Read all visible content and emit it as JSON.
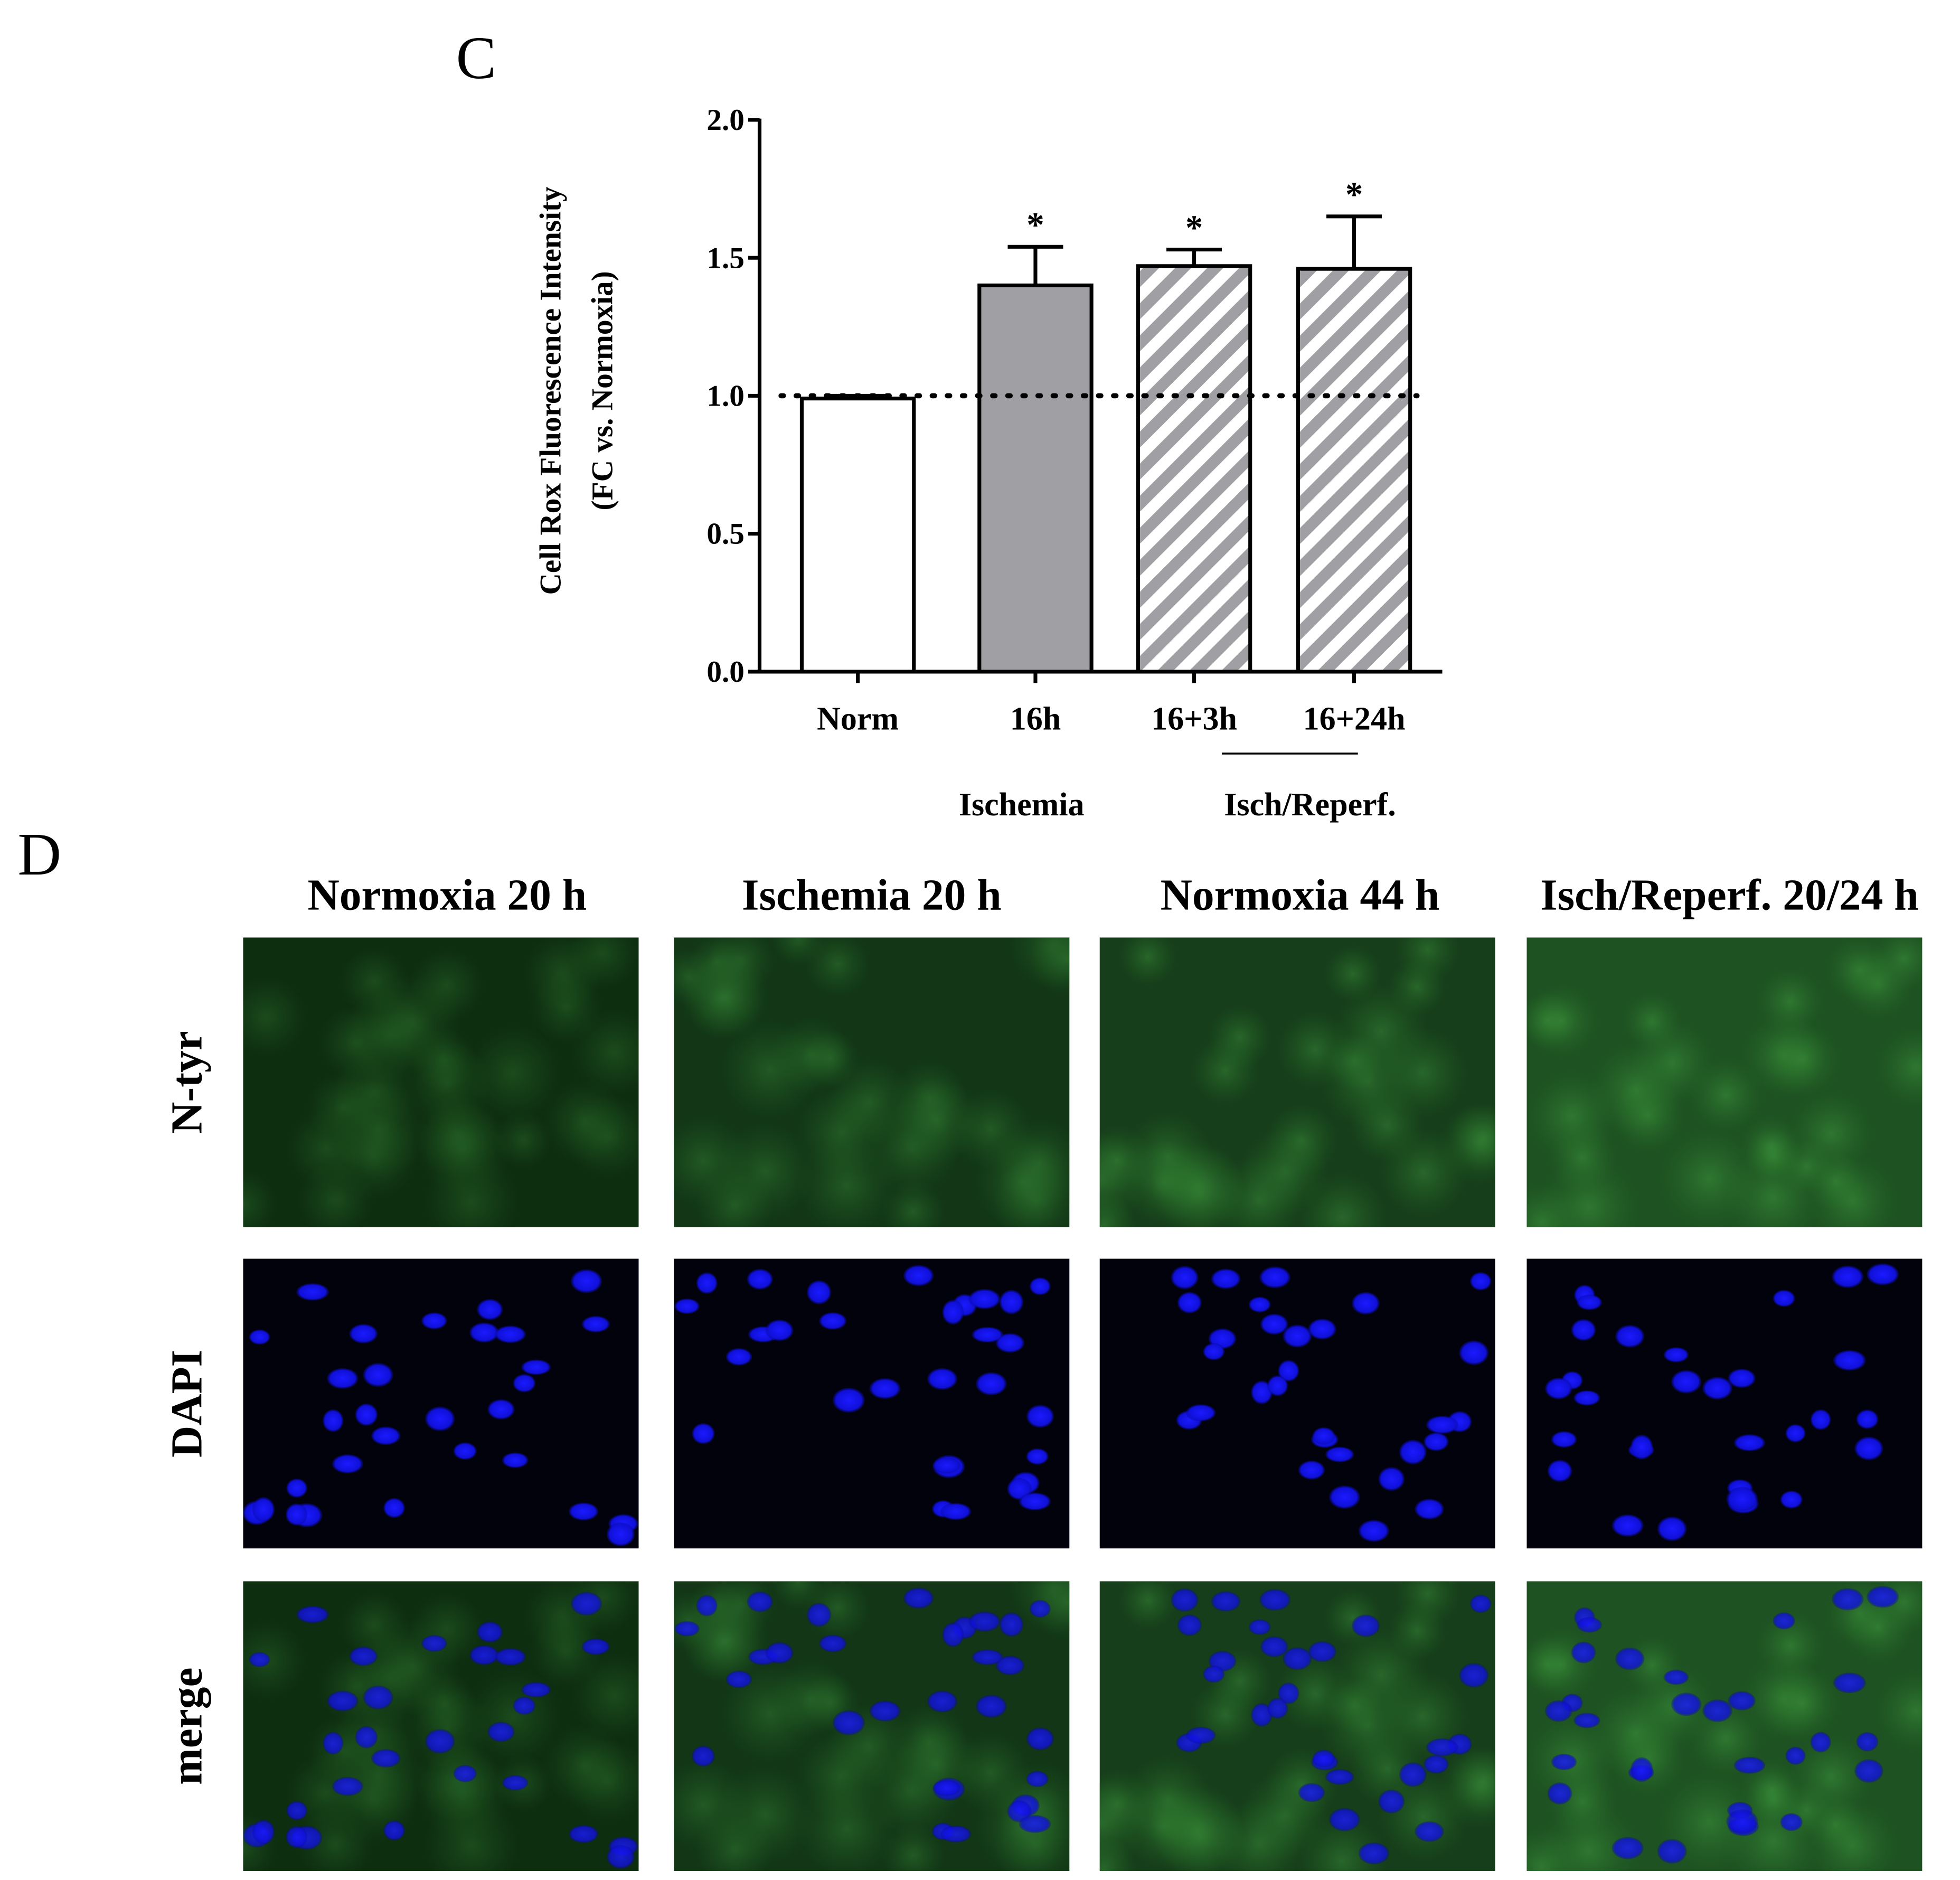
{
  "panel_c": {
    "label": "C"
  },
  "chart_data": {
    "type": "bar",
    "y_label_lines": [
      "Cell Rox Fluorescence Intensity",
      "(FC vs. Normoxia)"
    ],
    "categories": [
      "Norm",
      "16h",
      "16+3h",
      "16+24h"
    ],
    "values": [
      0.99,
      1.4,
      1.47,
      1.46
    ],
    "errors": [
      0.01,
      0.14,
      0.06,
      0.19
    ],
    "significance": [
      null,
      "*",
      "*",
      "*"
    ],
    "fills": [
      "#ffffff",
      "#a0a0a4",
      "#a0a0a4",
      "#a0a0a4"
    ],
    "hatched": [
      false,
      false,
      true,
      true
    ],
    "groups": [
      {
        "label": "Ischemia"
      },
      {
        "label": "Isch/Reperf."
      }
    ],
    "reference_line": 1,
    "ylim": [
      0,
      2
    ],
    "yticks": [
      {
        "value": 0,
        "label": "0.0"
      },
      0.5,
      {
        "value": 1,
        "label": "1.0"
      },
      1.5,
      {
        "value": 2,
        "label": "2.0"
      }
    ]
  },
  "panel_d": {
    "label": "D",
    "columns": [
      "Normoxia 20 h",
      "Ischemia 20 h",
      "Normoxia 44 h",
      "Isch/Reperf. 20/24 h"
    ],
    "rows": [
      "N-tyr",
      "DAPI",
      "merge"
    ]
  }
}
